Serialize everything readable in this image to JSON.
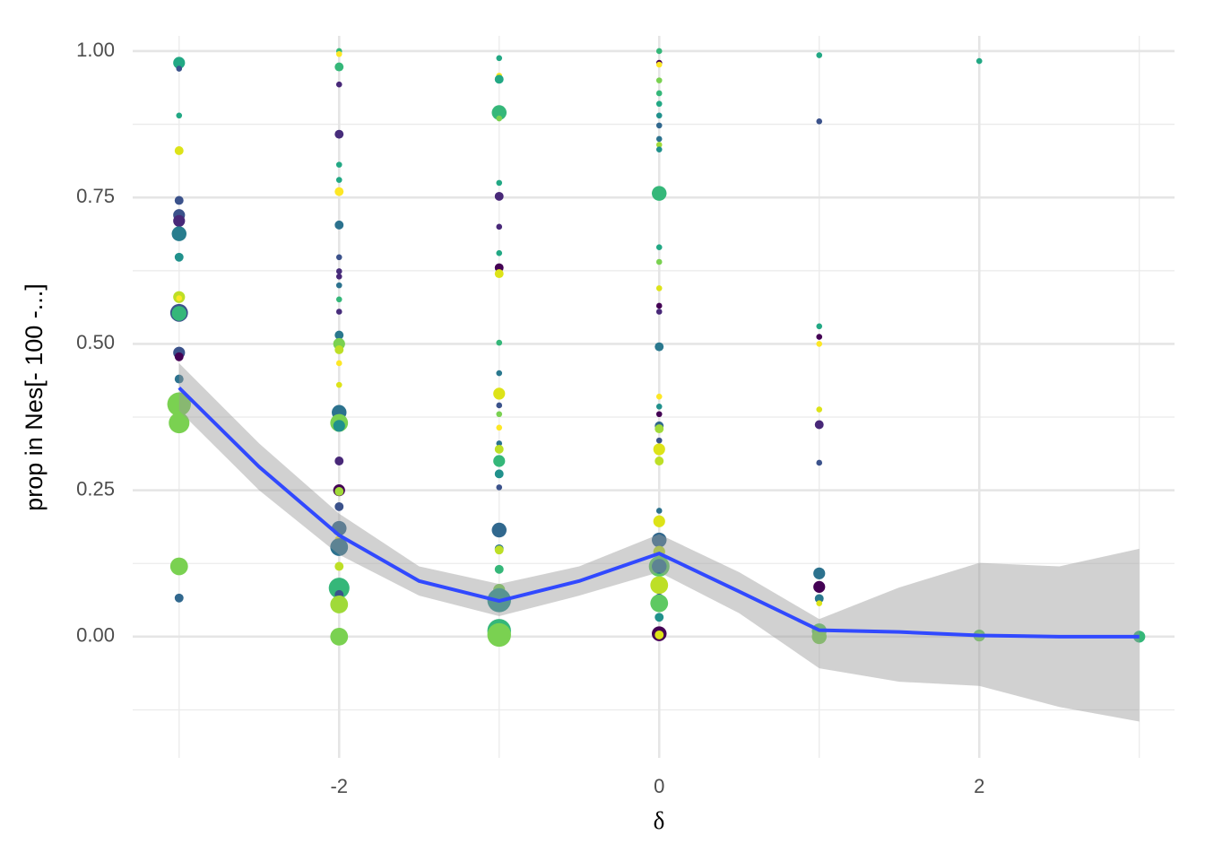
{
  "chart_data": {
    "type": "scatter",
    "x_label": "δ",
    "y_label": "prop in Nes[- 100 -...]",
    "xlim": [
      -3.29,
      3.22
    ],
    "ylim": [
      -0.207,
      1.026
    ],
    "xticks": [
      -2,
      0,
      2
    ],
    "yticks": [
      {
        "value": 0,
        "label": "0.00"
      },
      {
        "value": 0.25,
        "label": "0.25"
      },
      {
        "value": 0.5,
        "label": "0.50"
      },
      {
        "value": 0.75,
        "label": "0.75"
      },
      {
        "value": 1,
        "label": "1.00"
      }
    ],
    "xminor": [
      -3,
      -1,
      1,
      3
    ],
    "yminor": [
      -0.125,
      0.125,
      0.375,
      0.625,
      0.875
    ],
    "grid": true,
    "points": [
      {
        "x": -3,
        "y": 0.98,
        "size": 2,
        "color": "#22a884"
      },
      {
        "x": -3,
        "y": 0.97,
        "size": 1,
        "color": "#3b528b"
      },
      {
        "x": -3,
        "y": 0.89,
        "size": 1,
        "color": "#22a884"
      },
      {
        "x": -3,
        "y": 0.83,
        "size": 1.5,
        "color": "#dde318"
      },
      {
        "x": -3,
        "y": 0.745,
        "size": 1.5,
        "color": "#3b528b"
      },
      {
        "x": -3,
        "y": 0.72,
        "size": 2,
        "color": "#3b528b"
      },
      {
        "x": -3,
        "y": 0.71,
        "size": 2,
        "color": "#482878"
      },
      {
        "x": -3,
        "y": 0.69,
        "size": 1.5,
        "color": "#fde725"
      },
      {
        "x": -3,
        "y": 0.688,
        "size": 2.5,
        "color": "#287d8e"
      },
      {
        "x": -3,
        "y": 0.648,
        "size": 1.5,
        "color": "#21918c"
      },
      {
        "x": -3,
        "y": 0.58,
        "size": 2,
        "color": "#bddf26"
      },
      {
        "x": -3,
        "y": 0.578,
        "size": 1,
        "color": "#fde725"
      },
      {
        "x": -3,
        "y": 0.553,
        "size": 3,
        "color": "#3b528b"
      },
      {
        "x": -3,
        "y": 0.552,
        "size": 2.5,
        "color": "#35b779"
      },
      {
        "x": -3,
        "y": 0.485,
        "size": 2,
        "color": "#3b528b"
      },
      {
        "x": -3,
        "y": 0.478,
        "size": 1.5,
        "color": "#440154"
      },
      {
        "x": -3,
        "y": 0.44,
        "size": 1.5,
        "color": "#2c728e"
      },
      {
        "x": -3,
        "y": 0.397,
        "size": 4,
        "color": "#7ad151"
      },
      {
        "x": -3,
        "y": 0.365,
        "size": 3.5,
        "color": "#7ad151"
      },
      {
        "x": -3,
        "y": 0.12,
        "size": 3,
        "color": "#7ad151"
      },
      {
        "x": -3,
        "y": 0.066,
        "size": 1.5,
        "color": "#31688e"
      },
      {
        "x": -2,
        "y": 1.0,
        "size": 1,
        "color": "#35b779"
      },
      {
        "x": -2,
        "y": 0.995,
        "size": 1,
        "color": "#fde725"
      },
      {
        "x": -2,
        "y": 0.973,
        "size": 1.5,
        "color": "#35b779"
      },
      {
        "x": -2,
        "y": 0.943,
        "size": 1,
        "color": "#482878"
      },
      {
        "x": -2,
        "y": 0.858,
        "size": 1.5,
        "color": "#472d7b"
      },
      {
        "x": -2,
        "y": 0.806,
        "size": 1,
        "color": "#22a884"
      },
      {
        "x": -2,
        "y": 0.78,
        "size": 1,
        "color": "#22a884"
      },
      {
        "x": -2,
        "y": 0.76,
        "size": 1.5,
        "color": "#fde725"
      },
      {
        "x": -2,
        "y": 0.703,
        "size": 1.5,
        "color": "#2c728e"
      },
      {
        "x": -2,
        "y": 0.648,
        "size": 1,
        "color": "#3b528b"
      },
      {
        "x": -2,
        "y": 0.624,
        "size": 1,
        "color": "#472d7b"
      },
      {
        "x": -2,
        "y": 0.615,
        "size": 1,
        "color": "#482878"
      },
      {
        "x": -2,
        "y": 0.6,
        "size": 1,
        "color": "#2c728e"
      },
      {
        "x": -2,
        "y": 0.576,
        "size": 1,
        "color": "#35b779"
      },
      {
        "x": -2,
        "y": 0.555,
        "size": 1,
        "color": "#472d7b"
      },
      {
        "x": -2,
        "y": 0.515,
        "size": 1.5,
        "color": "#2a788e"
      },
      {
        "x": -2,
        "y": 0.5,
        "size": 2,
        "color": "#7ad151"
      },
      {
        "x": -2,
        "y": 0.49,
        "size": 1.5,
        "color": "#bddf26"
      },
      {
        "x": -2,
        "y": 0.467,
        "size": 1,
        "color": "#fde725"
      },
      {
        "x": -2,
        "y": 0.43,
        "size": 1,
        "color": "#dde318"
      },
      {
        "x": -2,
        "y": 0.383,
        "size": 2.5,
        "color": "#2c728e"
      },
      {
        "x": -2,
        "y": 0.365,
        "size": 3,
        "color": "#7ad151"
      },
      {
        "x": -2,
        "y": 0.36,
        "size": 2,
        "color": "#21918c"
      },
      {
        "x": -2,
        "y": 0.3,
        "size": 1.5,
        "color": "#482878"
      },
      {
        "x": -2,
        "y": 0.25,
        "size": 2,
        "color": "#440154"
      },
      {
        "x": -2,
        "y": 0.248,
        "size": 1.5,
        "color": "#a0da39"
      },
      {
        "x": -2,
        "y": 0.222,
        "size": 1.5,
        "color": "#3b528b"
      },
      {
        "x": -2,
        "y": 0.185,
        "size": 2.5,
        "color": "#31688e"
      },
      {
        "x": -2,
        "y": 0.165,
        "size": 1.5,
        "color": "#fde725"
      },
      {
        "x": -2,
        "y": 0.153,
        "size": 3,
        "color": "#2c728e"
      },
      {
        "x": -2,
        "y": 0.12,
        "size": 1.5,
        "color": "#bddf26"
      },
      {
        "x": -2,
        "y": 0.083,
        "size": 3.5,
        "color": "#35b779"
      },
      {
        "x": -2,
        "y": 0.072,
        "size": 1.5,
        "color": "#3b528b"
      },
      {
        "x": -2,
        "y": 0.055,
        "size": 3,
        "color": "#a0da39"
      },
      {
        "x": -2,
        "y": 0.0,
        "size": 3,
        "color": "#7ad151"
      },
      {
        "x": -1,
        "y": 0.988,
        "size": 1,
        "color": "#22a884"
      },
      {
        "x": -1,
        "y": 0.958,
        "size": 1,
        "color": "#fde725"
      },
      {
        "x": -1,
        "y": 0.952,
        "size": 1.5,
        "color": "#22a884"
      },
      {
        "x": -1,
        "y": 0.895,
        "size": 2.5,
        "color": "#35b779"
      },
      {
        "x": -1,
        "y": 0.885,
        "size": 1,
        "color": "#7ad151"
      },
      {
        "x": -1,
        "y": 0.775,
        "size": 1,
        "color": "#22a884"
      },
      {
        "x": -1,
        "y": 0.752,
        "size": 1.5,
        "color": "#482878"
      },
      {
        "x": -1,
        "y": 0.7,
        "size": 1,
        "color": "#482878"
      },
      {
        "x": -1,
        "y": 0.655,
        "size": 1,
        "color": "#22a884"
      },
      {
        "x": -1,
        "y": 0.63,
        "size": 1.5,
        "color": "#440154"
      },
      {
        "x": -1,
        "y": 0.62,
        "size": 1.5,
        "color": "#dde318"
      },
      {
        "x": -1,
        "y": 0.502,
        "size": 1,
        "color": "#35b779"
      },
      {
        "x": -1,
        "y": 0.45,
        "size": 1,
        "color": "#2a788e"
      },
      {
        "x": -1,
        "y": 0.415,
        "size": 2,
        "color": "#dde318"
      },
      {
        "x": -1,
        "y": 0.395,
        "size": 1,
        "color": "#3b528b"
      },
      {
        "x": -1,
        "y": 0.38,
        "size": 1,
        "color": "#7ad151"
      },
      {
        "x": -1,
        "y": 0.357,
        "size": 1,
        "color": "#fde725"
      },
      {
        "x": -1,
        "y": 0.33,
        "size": 1,
        "color": "#2c728e"
      },
      {
        "x": -1,
        "y": 0.32,
        "size": 1.5,
        "color": "#bddf26"
      },
      {
        "x": -1,
        "y": 0.3,
        "size": 2,
        "color": "#35b779"
      },
      {
        "x": -1,
        "y": 0.278,
        "size": 1.5,
        "color": "#21918c"
      },
      {
        "x": -1,
        "y": 0.255,
        "size": 1,
        "color": "#3b528b"
      },
      {
        "x": -1,
        "y": 0.182,
        "size": 2.5,
        "color": "#31688e"
      },
      {
        "x": -1,
        "y": 0.15,
        "size": 1.5,
        "color": "#2c728e"
      },
      {
        "x": -1,
        "y": 0.148,
        "size": 1.5,
        "color": "#bddf26"
      },
      {
        "x": -1,
        "y": 0.115,
        "size": 1,
        "color": "#2c728e"
      },
      {
        "x": -1,
        "y": 0.115,
        "size": 1.5,
        "color": "#35b779"
      },
      {
        "x": -1,
        "y": 0.08,
        "size": 2,
        "color": "#7ad151"
      },
      {
        "x": -1,
        "y": 0.068,
        "size": 3,
        "color": "#35b779"
      },
      {
        "x": -1,
        "y": 0.062,
        "size": 4,
        "color": "#21918c"
      },
      {
        "x": -1,
        "y": 0.01,
        "size": 4,
        "color": "#35b779"
      },
      {
        "x": -1,
        "y": 0.003,
        "size": 4,
        "color": "#7ad151"
      },
      {
        "x": 0,
        "y": 1.0,
        "size": 1,
        "color": "#35b779"
      },
      {
        "x": 0,
        "y": 0.98,
        "size": 1,
        "color": "#440154"
      },
      {
        "x": 0,
        "y": 0.977,
        "size": 1,
        "color": "#fde725"
      },
      {
        "x": 0,
        "y": 0.95,
        "size": 1,
        "color": "#7ad151"
      },
      {
        "x": 0,
        "y": 0.928,
        "size": 1,
        "color": "#35b779"
      },
      {
        "x": 0,
        "y": 0.91,
        "size": 1,
        "color": "#22a884"
      },
      {
        "x": 0,
        "y": 0.89,
        "size": 1,
        "color": "#21918c"
      },
      {
        "x": 0,
        "y": 0.873,
        "size": 1,
        "color": "#31688e"
      },
      {
        "x": 0,
        "y": 0.85,
        "size": 1,
        "color": "#2c728e"
      },
      {
        "x": 0,
        "y": 0.84,
        "size": 1,
        "color": "#a0da39"
      },
      {
        "x": 0,
        "y": 0.832,
        "size": 1,
        "color": "#21918c"
      },
      {
        "x": 0,
        "y": 0.757,
        "size": 2.5,
        "color": "#35b779"
      },
      {
        "x": 0,
        "y": 0.665,
        "size": 1,
        "color": "#22a884"
      },
      {
        "x": 0,
        "y": 0.64,
        "size": 1,
        "color": "#7ad151"
      },
      {
        "x": 0,
        "y": 0.595,
        "size": 1,
        "color": "#dde318"
      },
      {
        "x": 0,
        "y": 0.565,
        "size": 1,
        "color": "#440154"
      },
      {
        "x": 0,
        "y": 0.555,
        "size": 1,
        "color": "#482878"
      },
      {
        "x": 0,
        "y": 0.495,
        "size": 1.5,
        "color": "#2a788e"
      },
      {
        "x": 0,
        "y": 0.41,
        "size": 1,
        "color": "#fde725"
      },
      {
        "x": 0,
        "y": 0.393,
        "size": 1,
        "color": "#21918c"
      },
      {
        "x": 0,
        "y": 0.38,
        "size": 1,
        "color": "#440154"
      },
      {
        "x": 0,
        "y": 0.36,
        "size": 1.5,
        "color": "#31688e"
      },
      {
        "x": 0,
        "y": 0.355,
        "size": 1.5,
        "color": "#a0da39"
      },
      {
        "x": 0,
        "y": 0.335,
        "size": 1,
        "color": "#3b528b"
      },
      {
        "x": 0,
        "y": 0.32,
        "size": 2,
        "color": "#dde318"
      },
      {
        "x": 0,
        "y": 0.3,
        "size": 1.5,
        "color": "#bddf26"
      },
      {
        "x": 0,
        "y": 0.215,
        "size": 1,
        "color": "#2c728e"
      },
      {
        "x": 0,
        "y": 0.197,
        "size": 2,
        "color": "#dde318"
      },
      {
        "x": 0,
        "y": 0.165,
        "size": 2.5,
        "color": "#31688e"
      },
      {
        "x": 0,
        "y": 0.145,
        "size": 2,
        "color": "#bddf26"
      },
      {
        "x": 0,
        "y": 0.12,
        "size": 3.5,
        "color": "#5ec962"
      },
      {
        "x": 0,
        "y": 0.12,
        "size": 2.5,
        "color": "#2c728e"
      },
      {
        "x": 0,
        "y": 0.088,
        "size": 3,
        "color": "#bddf26"
      },
      {
        "x": 0,
        "y": 0.066,
        "size": 1.5,
        "color": "#3b528b"
      },
      {
        "x": 0,
        "y": 0.057,
        "size": 3,
        "color": "#5ec962"
      },
      {
        "x": 0,
        "y": 0.033,
        "size": 1.5,
        "color": "#21918c"
      },
      {
        "x": 0,
        "y": 0.005,
        "size": 2.5,
        "color": "#440154"
      },
      {
        "x": 0,
        "y": 0.003,
        "size": 1.5,
        "color": "#dde318"
      },
      {
        "x": 1,
        "y": 0.993,
        "size": 1,
        "color": "#22a884"
      },
      {
        "x": 1,
        "y": 0.88,
        "size": 1,
        "color": "#3b528b"
      },
      {
        "x": 1,
        "y": 0.53,
        "size": 1,
        "color": "#22a884"
      },
      {
        "x": 1,
        "y": 0.512,
        "size": 1,
        "color": "#440154"
      },
      {
        "x": 1,
        "y": 0.5,
        "size": 1,
        "color": "#fde725"
      },
      {
        "x": 1,
        "y": 0.388,
        "size": 1,
        "color": "#dde318"
      },
      {
        "x": 1,
        "y": 0.362,
        "size": 1.5,
        "color": "#482878"
      },
      {
        "x": 1,
        "y": 0.297,
        "size": 1,
        "color": "#3b528b"
      },
      {
        "x": 1,
        "y": 0.108,
        "size": 2,
        "color": "#2c728e"
      },
      {
        "x": 1,
        "y": 0.085,
        "size": 2,
        "color": "#440154"
      },
      {
        "x": 1,
        "y": 0.065,
        "size": 1.5,
        "color": "#2a788e"
      },
      {
        "x": 1,
        "y": 0.057,
        "size": 1,
        "color": "#dde318"
      },
      {
        "x": 1,
        "y": 0.01,
        "size": 2.5,
        "color": "#5ec962"
      },
      {
        "x": 1,
        "y": 0.0,
        "size": 2.5,
        "color": "#7ad151"
      },
      {
        "x": 2,
        "y": 0.983,
        "size": 1,
        "color": "#22a884"
      },
      {
        "x": 2,
        "y": 0.002,
        "size": 2,
        "color": "#5ec962"
      },
      {
        "x": 2,
        "y": 0.0,
        "size": 1.5,
        "color": "#7ad151"
      },
      {
        "x": 3,
        "y": 0.0,
        "size": 2,
        "color": "#35b779"
      }
    ],
    "smooth": {
      "color": "#3149ff",
      "band_color": "#999999",
      "x": [
        -3,
        -2.5,
        -2,
        -1.5,
        -1,
        -0.5,
        0,
        0.5,
        1,
        1.5,
        2,
        2.5,
        3
      ],
      "values": [
        0.425,
        0.29,
        0.173,
        0.095,
        0.061,
        0.095,
        0.142,
        0.077,
        0.011,
        0.008,
        0.002,
        0,
        0
      ],
      "upper": [
        0.467,
        0.33,
        0.21,
        0.12,
        0.09,
        0.12,
        0.175,
        0.11,
        0.03,
        0.084,
        0.126,
        0.12,
        0.15
      ],
      "lower": [
        0.386,
        0.25,
        0.14,
        0.07,
        0.035,
        0.07,
        0.11,
        0.04,
        -0.054,
        -0.077,
        -0.084,
        -0.12,
        -0.145
      ]
    }
  }
}
